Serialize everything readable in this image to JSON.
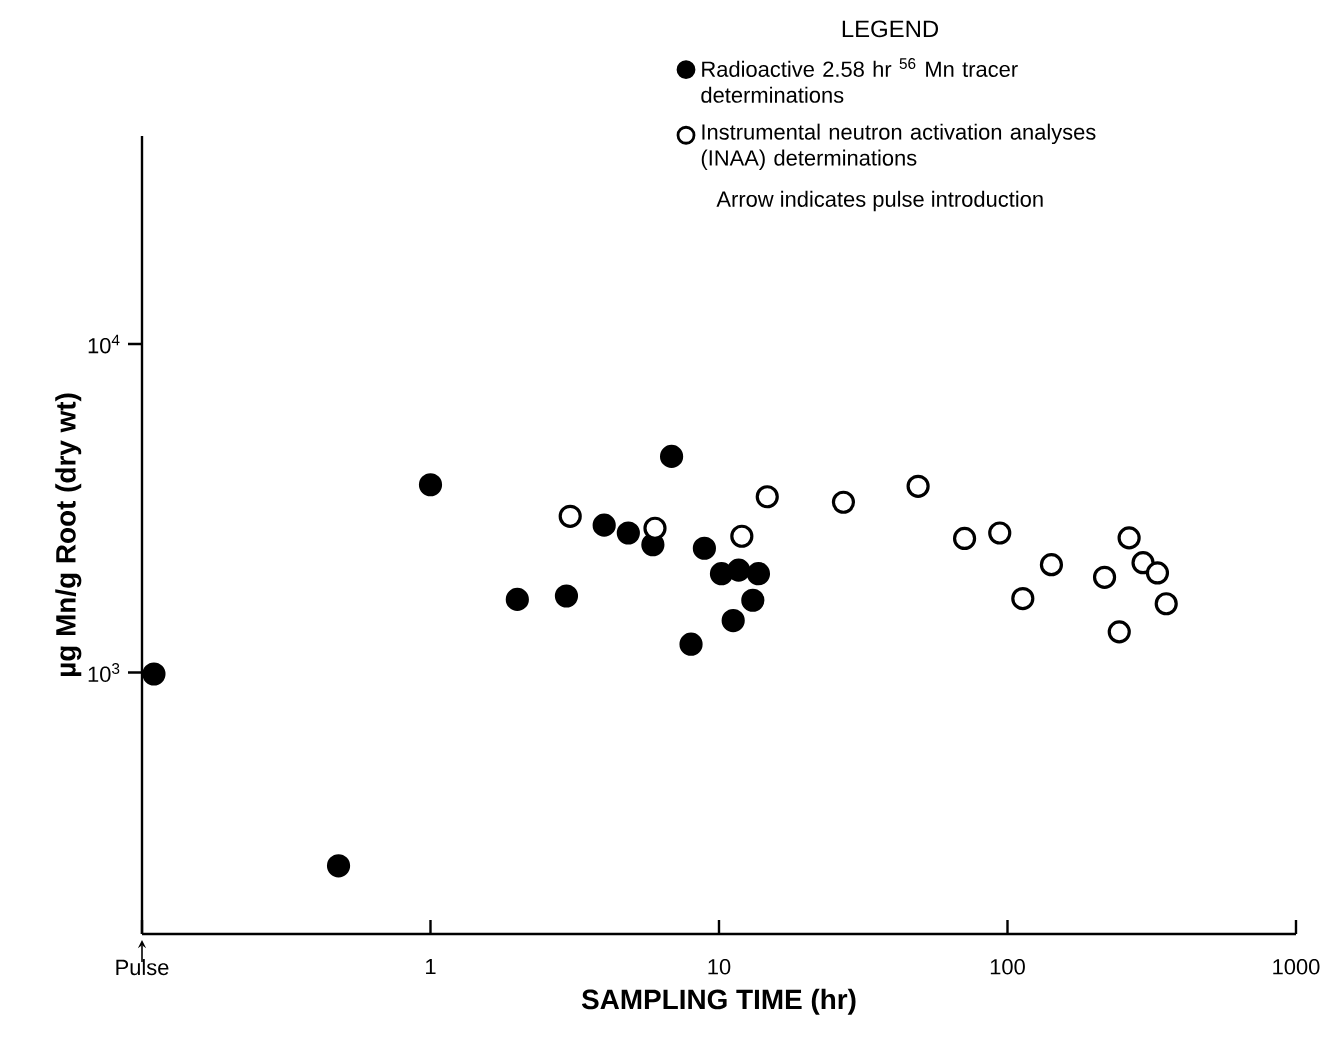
{
  "chart_data": {
    "type": "scatter",
    "xlabel": "SAMPLING TIME (hr)",
    "ylabel": "µg Mn/g Root (dry wt)",
    "legend_title": "LEGEND",
    "log": "xy",
    "marker": "circle",
    "legend": "top right",
    "grid": false,
    "xlim": [
      0.1,
      1000
    ],
    "ylim": [
      160,
      43000
    ],
    "xticks": [
      {
        "value": 0.1,
        "label": "Pulse"
      },
      1,
      10,
      100,
      1000
    ],
    "yticks": [
      {
        "value": 1000,
        "label": "10$^{3}$"
      },
      {
        "value": 10000,
        "label": "10$^{4}$"
      }
    ],
    "series": [
      {
        "name": "Radioactive 2.58 hr $^{56}$ Mn tracer determinations",
        "color": "#000000",
        "x": [
          0.11,
          0.48,
          1,
          2,
          2.96,
          4,
          4.85,
          5.9,
          6.85,
          8,
          8.9,
          10.2,
          11.2,
          11.7,
          13.1,
          13.7
        ],
        "values": [
          990,
          258,
          3730,
          1670,
          1710,
          2810,
          2660,
          2450,
          4550,
          1220,
          2390,
          2000,
          1440,
          2050,
          1660,
          2000
        ]
      },
      {
        "name": "Instrumental neutron activation analyses (INAA) determinations",
        "color": "#ffffff",
        "x": [
          3.05,
          6,
          12,
          14.7,
          27,
          49,
          71,
          94,
          113,
          142,
          217,
          244,
          264,
          295,
          331,
          355
        ],
        "values": [
          2990,
          2750,
          2600,
          3430,
          3300,
          3690,
          2560,
          2660,
          1680,
          2130,
          1950,
          1330,
          2570,
          2160,
          2010,
          1620
        ]
      }
    ],
    "annotations": [
      "Arrow indicates pulse introduction"
    ]
  }
}
